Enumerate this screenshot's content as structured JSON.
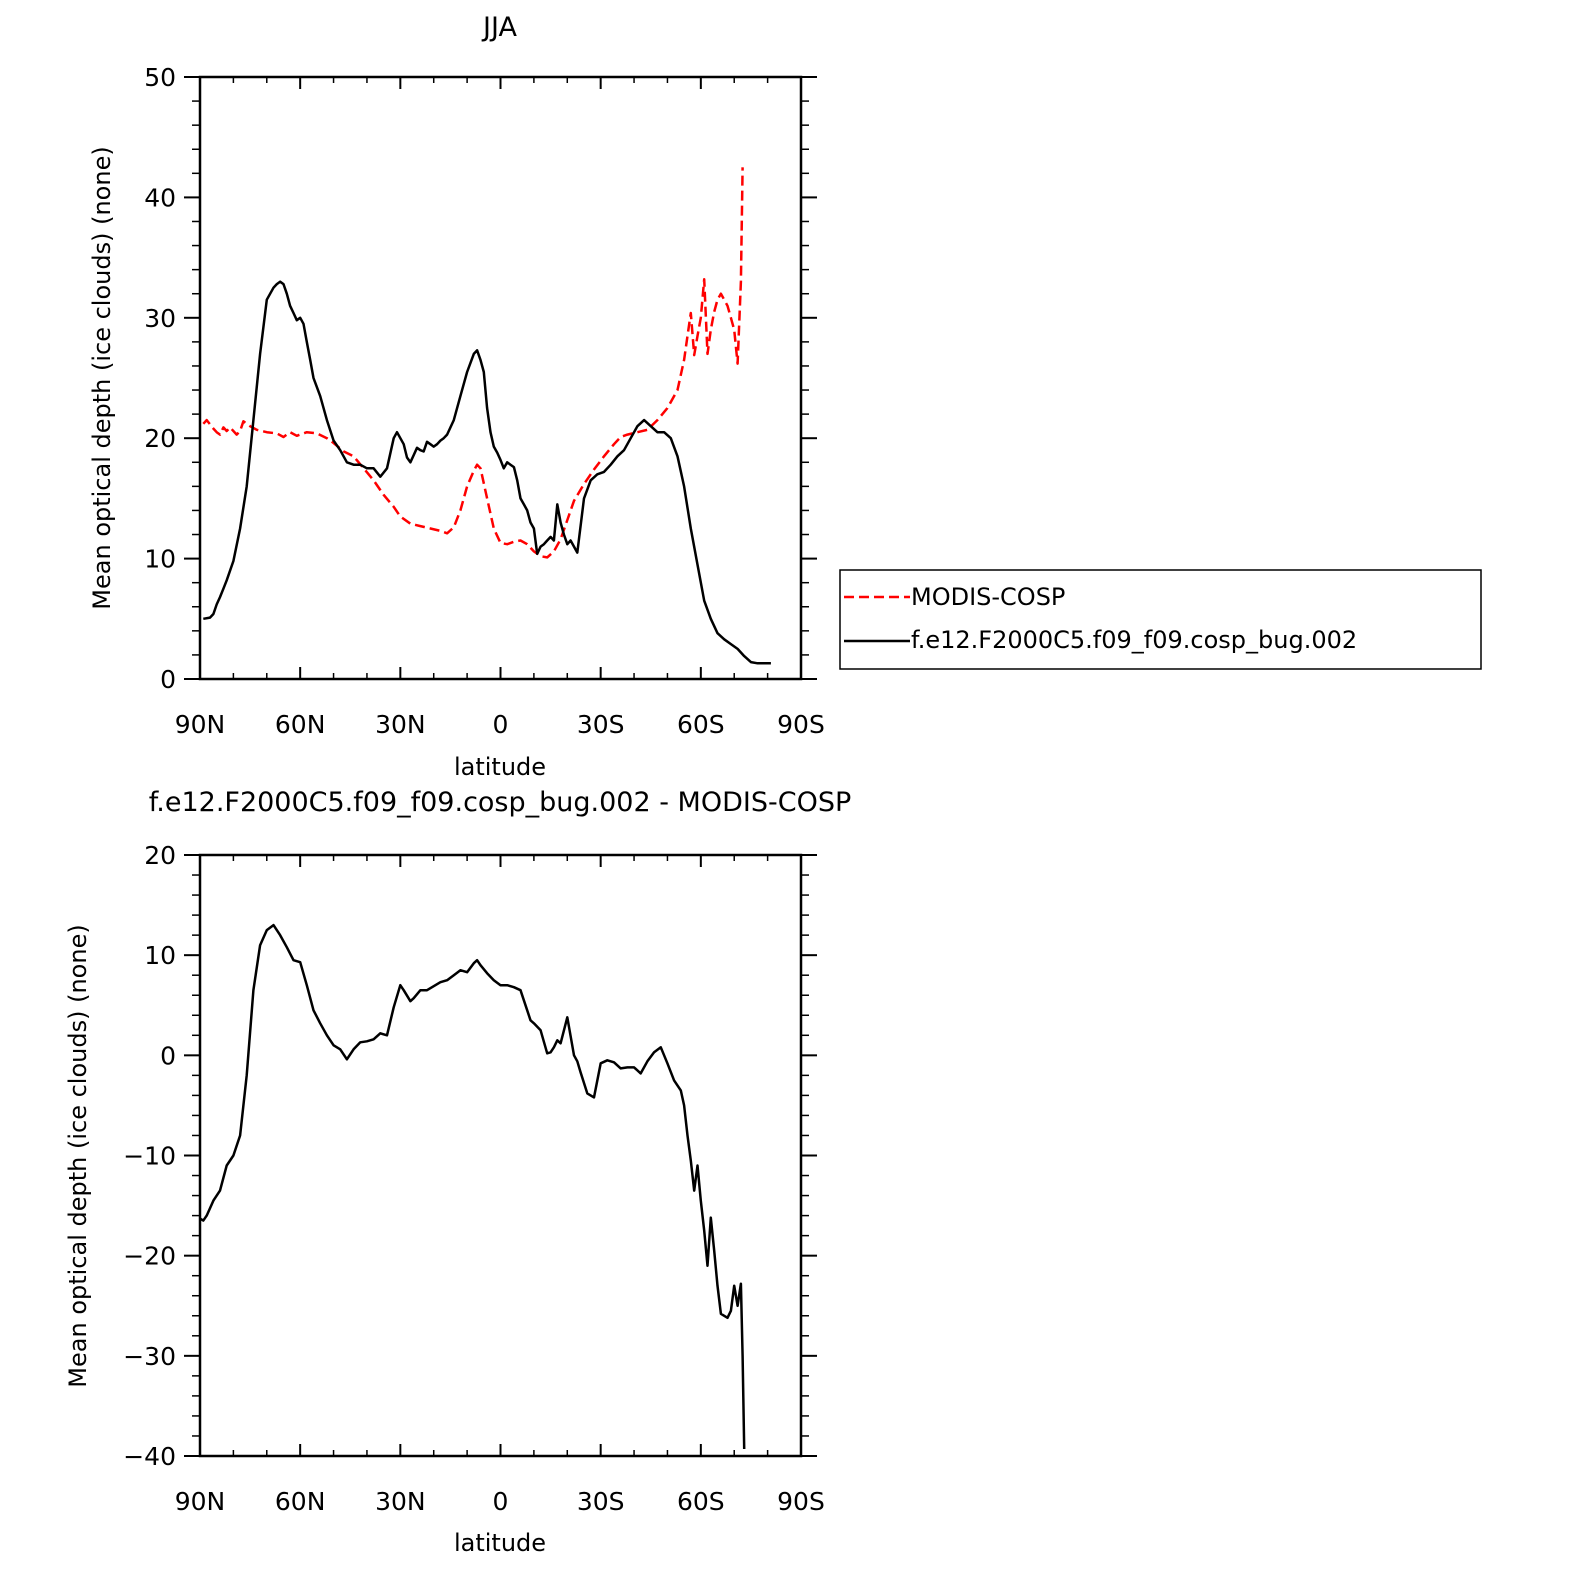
{
  "chart_data": [
    {
      "type": "line",
      "title": "JJA",
      "xlabel": "latitude",
      "ylabel": "Mean optical depth (ice clouds) (none)",
      "xlim": [
        90,
        -90
      ],
      "ylim": [
        0,
        50
      ],
      "x_ticks": [
        90,
        60,
        30,
        0,
        -30,
        -60,
        -90
      ],
      "x_tick_labels": [
        "90N",
        "60N",
        "30N",
        "0",
        "30S",
        "60S",
        "90S"
      ],
      "y_ticks": [
        0,
        10,
        20,
        30,
        40,
        50
      ],
      "y_tick_labels": [
        "0",
        "10",
        "20",
        "30",
        "40",
        "50"
      ],
      "legend_position": "right",
      "series": [
        {
          "name": "MODIS-COSP",
          "color": "#ff0000",
          "dash": "dashed",
          "x": [
            89,
            88,
            86,
            85,
            84,
            83,
            82,
            81,
            79,
            78,
            77,
            75,
            73,
            70,
            67,
            65,
            63,
            61,
            58,
            55,
            52,
            50,
            47,
            44,
            41,
            38,
            35,
            32,
            30,
            27,
            24,
            21,
            18,
            16,
            14,
            12,
            10,
            8,
            7,
            6,
            4,
            2,
            0,
            -2,
            -4,
            -6,
            -8,
            -10,
            -12,
            -14,
            -16,
            -18,
            -20,
            -22,
            -25,
            -28,
            -31,
            -34,
            -36,
            -38,
            -41,
            -44,
            -47,
            -50,
            -53,
            -55,
            -56,
            -57,
            -58,
            -59,
            -60,
            -61,
            -62,
            -63,
            -64,
            -65,
            -66,
            -67,
            -68,
            -69,
            -70,
            -71,
            -72,
            -72.5
          ],
          "y": [
            21.2,
            21.5,
            20.8,
            20.5,
            20.3,
            20.9,
            20.6,
            20.9,
            20.3,
            20.6,
            21.4,
            21.0,
            20.7,
            20.5,
            20.4,
            20.1,
            20.5,
            20.2,
            20.5,
            20.4,
            20.0,
            19.6,
            18.9,
            18.5,
            17.5,
            16.5,
            15.3,
            14.3,
            13.5,
            12.9,
            12.7,
            12.5,
            12.3,
            12.1,
            12.6,
            14.0,
            16.0,
            17.3,
            17.8,
            17.5,
            15.0,
            12.5,
            11.3,
            11.2,
            11.4,
            11.5,
            11.2,
            10.6,
            10.2,
            10.1,
            10.6,
            11.6,
            13.2,
            14.8,
            16.2,
            17.4,
            18.5,
            19.5,
            20.1,
            20.3,
            20.5,
            20.7,
            21.5,
            22.5,
            24.0,
            26.5,
            28.5,
            30.4,
            26.9,
            28.5,
            30.0,
            33.2,
            27.0,
            29.0,
            30.5,
            31.5,
            32.0,
            31.5,
            31.0,
            30.0,
            29.0,
            26.2,
            33.0,
            42.5
          ]
        },
        {
          "name": "f.e12.F2000C5.f09_f09.cosp_bug.002",
          "color": "#000000",
          "dash": "solid",
          "x": [
            89,
            87,
            86,
            85,
            84,
            83,
            82,
            80,
            78,
            76,
            74,
            72,
            70,
            68,
            67,
            66,
            65,
            64,
            63,
            62,
            61,
            60,
            59,
            58,
            57,
            56,
            54,
            52,
            50,
            48,
            46,
            44,
            42,
            40,
            38,
            36,
            34,
            32,
            31,
            29,
            28,
            27,
            26,
            25,
            24,
            23,
            22,
            21,
            20,
            19,
            18,
            17,
            16,
            14,
            12,
            10,
            8,
            7,
            6,
            5,
            4,
            3,
            2,
            1,
            0,
            -1,
            -2,
            -3,
            -4,
            -5,
            -6,
            -7,
            -8,
            -9,
            -10,
            -11,
            -12,
            -13,
            -14,
            -15,
            -16,
            -17,
            -18,
            -19,
            -20,
            -21,
            -22,
            -23,
            -25,
            -27,
            -29,
            -31,
            -33,
            -35,
            -37,
            -39,
            -41,
            -43,
            -45,
            -47,
            -49,
            -51,
            -53,
            -55,
            -57,
            -59,
            -61,
            -63,
            -65,
            -67,
            -69,
            -71,
            -73,
            -75,
            -77,
            -79,
            -81
          ],
          "y": [
            5.0,
            5.1,
            5.4,
            6.2,
            6.8,
            7.5,
            8.2,
            9.8,
            12.5,
            16.0,
            21.5,
            27.0,
            31.5,
            32.5,
            32.8,
            33.0,
            32.8,
            32.0,
            31.0,
            30.4,
            29.8,
            30.0,
            29.5,
            28.0,
            26.5,
            25.0,
            23.5,
            21.5,
            19.8,
            19.0,
            18.0,
            17.8,
            17.8,
            17.5,
            17.5,
            16.8,
            17.5,
            20.0,
            20.5,
            19.5,
            18.4,
            18.0,
            18.6,
            19.2,
            19.0,
            18.9,
            19.7,
            19.5,
            19.3,
            19.5,
            19.8,
            20.0,
            20.3,
            21.5,
            23.5,
            25.5,
            27.0,
            27.3,
            26.5,
            25.5,
            22.5,
            20.5,
            19.3,
            18.8,
            18.2,
            17.5,
            18.0,
            17.8,
            17.6,
            16.5,
            15.0,
            14.5,
            14.0,
            13.0,
            12.5,
            10.4,
            11.0,
            11.2,
            11.5,
            11.8,
            11.5,
            14.5,
            13.0,
            12.0,
            11.2,
            11.5,
            11.0,
            10.5,
            15.0,
            16.5,
            17.0,
            17.2,
            17.8,
            18.5,
            19.0,
            20.0,
            21.0,
            21.5,
            21.0,
            20.5,
            20.5,
            20.0,
            18.5,
            16.0,
            12.5,
            9.5,
            6.5,
            5.0,
            3.8,
            3.3,
            2.9,
            2.5,
            1.9,
            1.4,
            1.3,
            1.3,
            1.3
          ]
        }
      ]
    },
    {
      "type": "line",
      "title": "f.e12.F2000C5.f09_f09.cosp_bug.002 - MODIS-COSP",
      "xlabel": "latitude",
      "ylabel": "Mean optical depth (ice clouds) (none)",
      "xlim": [
        90,
        -90
      ],
      "ylim": [
        -40,
        20
      ],
      "x_ticks": [
        90,
        60,
        30,
        0,
        -30,
        -60,
        -90
      ],
      "x_tick_labels": [
        "90N",
        "60N",
        "30N",
        "0",
        "30S",
        "60S",
        "90S"
      ],
      "y_ticks": [
        -40,
        -30,
        -20,
        -10,
        0,
        10,
        20
      ],
      "y_tick_labels": [
        "−40",
        "−30",
        "−20",
        "−10",
        "0",
        "10",
        "20"
      ],
      "series": [
        {
          "color": "#000000",
          "dash": "solid",
          "x": [
            90,
            89,
            88,
            86,
            84,
            82,
            80,
            78,
            76,
            74,
            72,
            70,
            68,
            66,
            64,
            62,
            60,
            58,
            56,
            54,
            52,
            50,
            48,
            46,
            44,
            42,
            40,
            38,
            36,
            34,
            32,
            30,
            29,
            27,
            26,
            24,
            22,
            20,
            18,
            16,
            14,
            12,
            10,
            8,
            7,
            6,
            4,
            2,
            0,
            -2,
            -4,
            -6,
            -8,
            -9,
            -10,
            -12,
            -14,
            -15,
            -16,
            -17,
            -18,
            -20,
            -22,
            -23,
            -24,
            -26,
            -28,
            -30,
            -32,
            -34,
            -36,
            -38,
            -40,
            -42,
            -44,
            -46,
            -48,
            -50,
            -52,
            -54,
            -55,
            -56,
            -57,
            -58,
            -59,
            -60,
            -61,
            -62,
            -63,
            -64,
            -65,
            -66,
            -67,
            -68,
            -69,
            -70,
            -71,
            -72,
            -72.5,
            -73
          ],
          "y": [
            -16.3,
            -16.5,
            -16.0,
            -14.5,
            -13.5,
            -11.0,
            -10.0,
            -8.0,
            -2.0,
            6.5,
            11.0,
            12.5,
            13.0,
            12.0,
            10.8,
            9.5,
            9.3,
            7.0,
            4.5,
            3.2,
            2.0,
            1.0,
            0.6,
            -0.4,
            0.6,
            1.3,
            1.4,
            1.6,
            2.2,
            2.0,
            4.8,
            7.0,
            6.5,
            5.4,
            5.7,
            6.5,
            6.5,
            6.9,
            7.3,
            7.5,
            8.0,
            8.5,
            8.3,
            9.2,
            9.5,
            9.0,
            8.2,
            7.5,
            7.0,
            7.0,
            6.8,
            6.5,
            4.5,
            3.5,
            3.2,
            2.5,
            0.2,
            0.3,
            0.8,
            1.5,
            1.2,
            3.8,
            0.0,
            -0.6,
            -1.7,
            -3.8,
            -4.2,
            -0.8,
            -0.5,
            -0.7,
            -1.3,
            -1.2,
            -1.2,
            -1.8,
            -0.6,
            0.3,
            0.8,
            -0.8,
            -2.5,
            -3.5,
            -5.0,
            -8.0,
            -10.5,
            -13.5,
            -11.0,
            -14.5,
            -17.5,
            -21.0,
            -16.2,
            -19.5,
            -23.0,
            -25.8,
            -26.0,
            -26.2,
            -25.5,
            -23.0,
            -25.0,
            -22.8,
            -30.0,
            -39.3
          ]
        }
      ]
    }
  ]
}
